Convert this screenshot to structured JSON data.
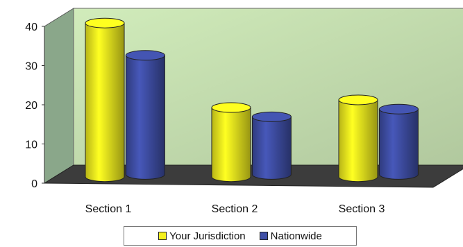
{
  "chart_data": {
    "type": "bar",
    "style": "3d-cylinder",
    "categories": [
      "Section 1",
      "Section 2",
      "Section 3"
    ],
    "series": [
      {
        "name": "Your Jurisdiction",
        "values": [
          40,
          18,
          20
        ],
        "color": "#f4f01e"
      },
      {
        "name": "Nationwide",
        "values": [
          31,
          15,
          17
        ],
        "color": "#3f4fa6"
      }
    ],
    "yticks": [
      0,
      10,
      20,
      30,
      40
    ],
    "ylim": [
      0,
      40
    ],
    "grid": false,
    "legend": "bottom",
    "colors": {
      "wall": "#c9e3b4",
      "side_wall": "#8aa78a",
      "floor": "#3c3c3c"
    }
  }
}
